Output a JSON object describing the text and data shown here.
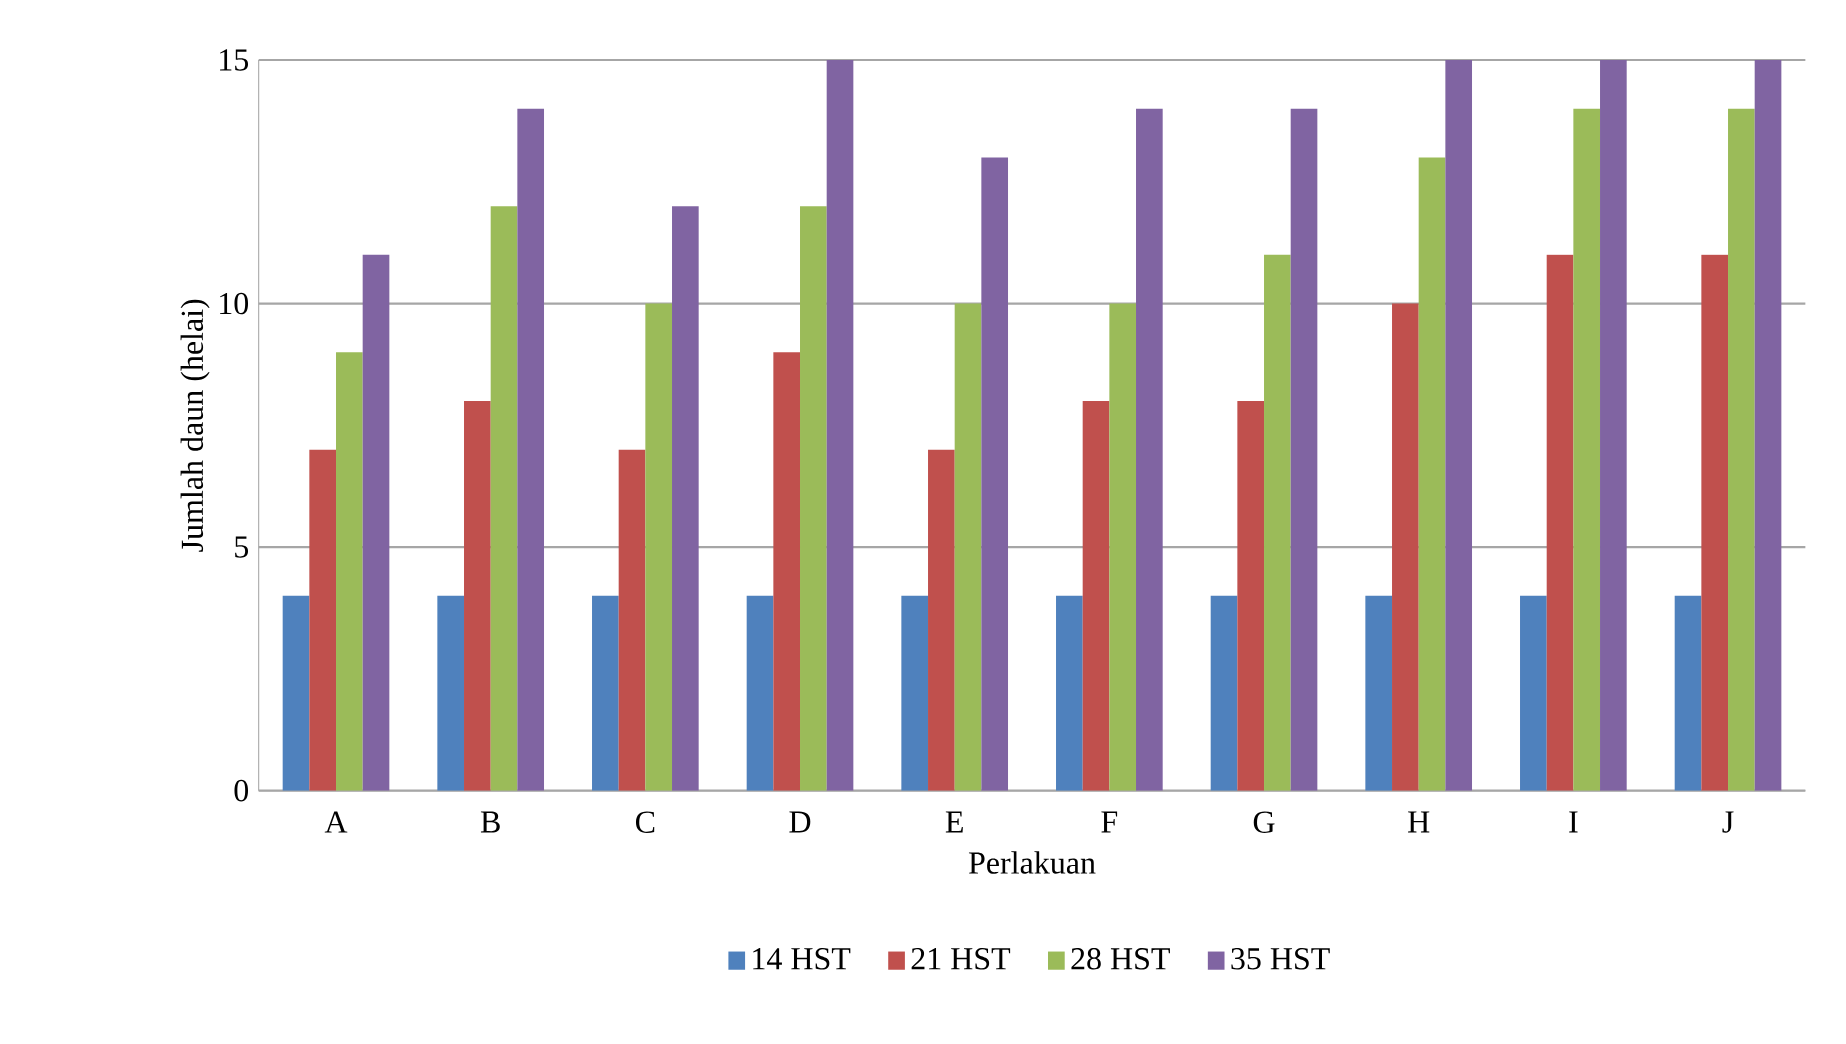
{
  "chart_data": {
    "type": "bar",
    "xlabel": "Perlakuan",
    "ylabel": "Jumlah daun (helai)",
    "categories": [
      "A",
      "B",
      "C",
      "D",
      "E",
      "F",
      "G",
      "H",
      "I",
      "J"
    ],
    "series": [
      {
        "name": "14 HST",
        "color": "#4f81bd",
        "values": [
          4,
          4,
          4,
          4,
          4,
          4,
          4,
          4,
          4,
          4
        ]
      },
      {
        "name": "21 HST",
        "color": "#c0504d",
        "values": [
          7,
          8,
          7,
          9,
          7,
          8,
          8,
          10,
          11,
          11
        ]
      },
      {
        "name": "28 HST",
        "color": "#9bbb59",
        "values": [
          9,
          12,
          10,
          12,
          10,
          10,
          11,
          13,
          14,
          14
        ]
      },
      {
        "name": "35 HST",
        "color": "#8064a2",
        "values": [
          11,
          14,
          12,
          15,
          13,
          14,
          14,
          15,
          15,
          15
        ]
      }
    ],
    "ylim": [
      0,
      15
    ],
    "yticks": [
      0,
      5,
      10,
      15
    ],
    "grid": "y",
    "legend": "bottom"
  }
}
